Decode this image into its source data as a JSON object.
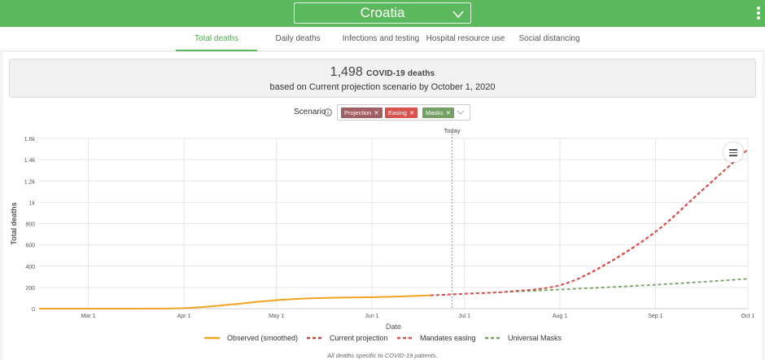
{
  "header": {
    "country": "Croatia"
  },
  "tabs": [
    {
      "label": "Total deaths",
      "active": true
    },
    {
      "label": "Daily deaths",
      "active": false
    },
    {
      "label": "Infections and testing",
      "active": false
    },
    {
      "label": "Hospital resource use",
      "active": false
    },
    {
      "label": "Social distancing",
      "active": false
    }
  ],
  "summary": {
    "count": "1,498",
    "unit_label": "COVID-19 deaths",
    "subtitle": "based on Current projection scenario by October 1, 2020"
  },
  "scenario": {
    "label": "Scenario",
    "chips": [
      {
        "label": "Projection",
        "color": "#a05f63"
      },
      {
        "label": "Easing",
        "color": "#d9534f"
      },
      {
        "label": "Masks",
        "color": "#74a065"
      }
    ]
  },
  "colors": {
    "observed": "#f0a320",
    "current": "#b94a48",
    "easing": "#d9534f",
    "masks": "#74a065",
    "accent": "#5cb85c"
  },
  "chart_data": {
    "type": "line",
    "xlabel": "Date",
    "ylabel": "Total deaths",
    "ylim": [
      0,
      1600
    ],
    "y_ticks": [
      0,
      200,
      400,
      600,
      800,
      1000,
      1200,
      1400,
      1600
    ],
    "y_tick_labels": [
      "0",
      "200",
      "400",
      "600",
      "800",
      "1k",
      "1.2k",
      "1.4k",
      "1.6k"
    ],
    "x_range": [
      "2020-02-14",
      "2020-10-01"
    ],
    "x_ticks": [
      {
        "date": "2020-03-01",
        "label": "Mar 1"
      },
      {
        "date": "2020-04-01",
        "label": "Apr 1"
      },
      {
        "date": "2020-05-01",
        "label": "May 1"
      },
      {
        "date": "2020-06-01",
        "label": "Jun 1"
      },
      {
        "date": "2020-07-01",
        "label": "Jul 1"
      },
      {
        "date": "2020-08-01",
        "label": "Aug 1"
      },
      {
        "date": "2020-09-01",
        "label": "Sep 1"
      },
      {
        "date": "2020-10-01",
        "label": "Oct 1"
      }
    ],
    "today": {
      "date": "2020-06-27",
      "label": "Today"
    },
    "grid": true,
    "legend_position": "bottom",
    "footnote": "All deaths specific to COVID-19 patients.",
    "series": [
      {
        "name": "Observed (smoothed)",
        "style": "solid",
        "color": "#f0a320",
        "x": [
          "2020-02-14",
          "2020-03-15",
          "2020-03-25",
          "2020-04-01",
          "2020-04-10",
          "2020-04-20",
          "2020-05-01",
          "2020-05-10",
          "2020-05-20",
          "2020-06-01",
          "2020-06-10",
          "2020-06-20"
        ],
        "y": [
          0,
          0,
          1,
          5,
          22,
          50,
          80,
          95,
          103,
          108,
          115,
          125
        ]
      },
      {
        "name": "Current projection",
        "style": "dashed",
        "color": "#b94a48",
        "x": [
          "2020-06-20",
          "2020-07-01",
          "2020-07-15",
          "2020-08-01",
          "2020-08-15",
          "2020-09-01",
          "2020-09-15",
          "2020-10-01"
        ],
        "y": [
          125,
          140,
          160,
          220,
          400,
          720,
          1080,
          1498
        ]
      },
      {
        "name": "Mandates easing",
        "style": "dashed",
        "color": "#d9534f",
        "x": [
          "2020-06-20",
          "2020-07-01",
          "2020-07-15",
          "2020-08-01",
          "2020-08-15",
          "2020-09-01",
          "2020-09-15",
          "2020-10-01"
        ],
        "y": [
          125,
          140,
          160,
          222,
          405,
          725,
          1085,
          1500
        ]
      },
      {
        "name": "Universal Masks",
        "style": "dashed",
        "color": "#74a065",
        "x": [
          "2020-06-20",
          "2020-07-01",
          "2020-08-01",
          "2020-09-01",
          "2020-10-01"
        ],
        "y": [
          125,
          140,
          180,
          225,
          280
        ]
      }
    ]
  }
}
